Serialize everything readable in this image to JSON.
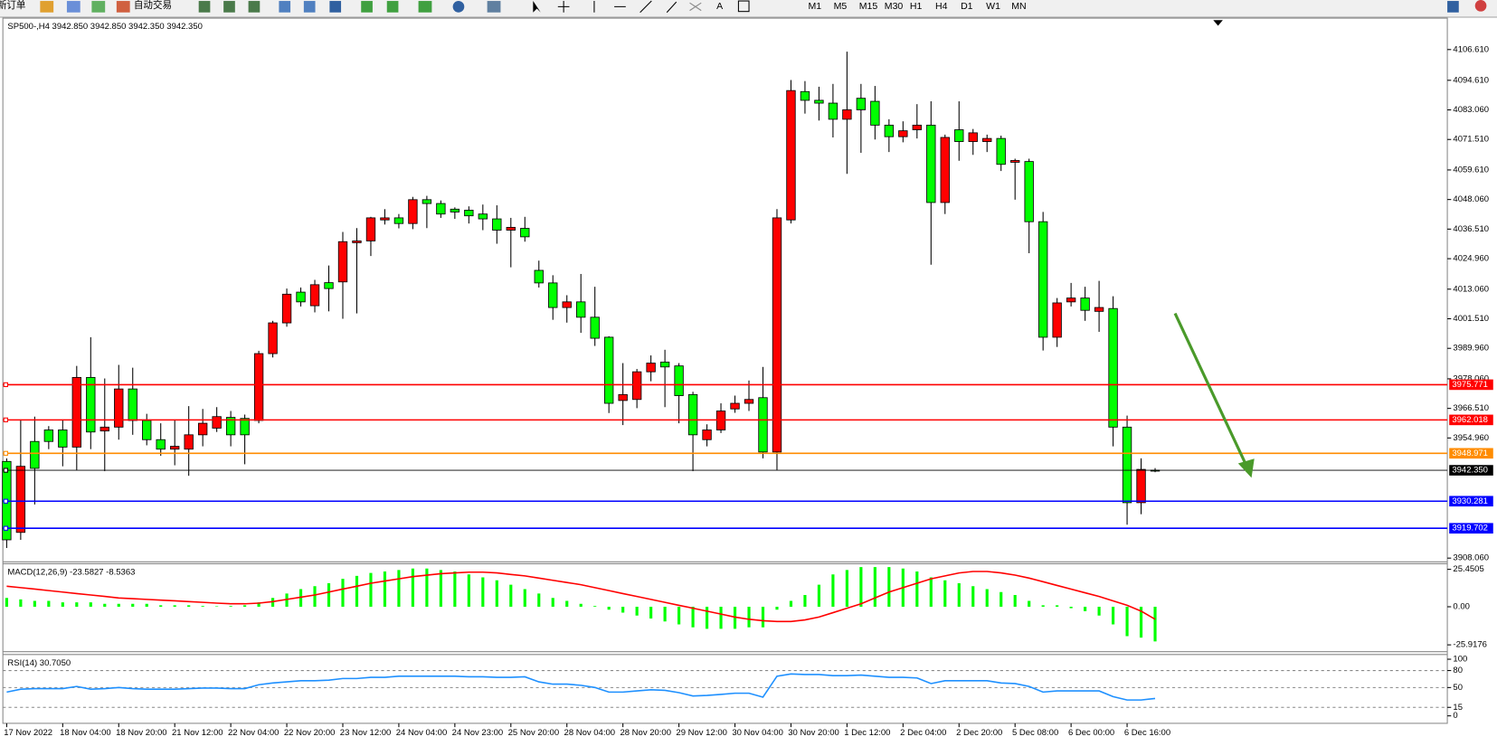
{
  "toolbar": {
    "new_order": "新订单",
    "auto_trading": "自动交易",
    "timeframes": [
      "M1",
      "M5",
      "M15",
      "M30",
      "H1",
      "H4",
      "D1",
      "W1",
      "MN"
    ]
  },
  "chart_data": [
    {
      "type": "candlestick",
      "title": "SP500-,H4  3942.850 3942.850 3942.350 3942.350",
      "categories": [
        "17 Nov 2022",
        null,
        null,
        null,
        "18 Nov 04:00",
        null,
        null,
        null,
        "18 Nov 20:00",
        null,
        null,
        null,
        "21 Nov 12:00",
        null,
        null,
        null,
        "22 Nov 04:00",
        null,
        null,
        null,
        "22 Nov 20:00",
        null,
        null,
        null,
        "23 Nov 12:00",
        null,
        null,
        null,
        "24 Nov 04:00",
        null,
        null,
        null,
        "24 Nov 23:00",
        null,
        null,
        null,
        "25 Nov 20:00",
        null,
        null,
        null,
        "28 Nov 04:00",
        null,
        null,
        null,
        "28 Nov 20:00",
        null,
        null,
        null,
        "29 Nov 12:00",
        null,
        null,
        null,
        "30 Nov 04:00",
        null,
        null,
        null,
        "30 Nov 20:00",
        null,
        null,
        null,
        "1 Dec 12:00",
        null,
        null,
        null,
        "2 Dec 04:00",
        null,
        null,
        null,
        "2 Dec 20:00",
        null,
        null,
        null,
        "5 Dec 08:00",
        null,
        null,
        null,
        "6 Dec 00:00",
        null,
        null,
        null,
        "6 Dec 16:00",
        null,
        null
      ],
      "open": [
        3945.8,
        3918.1,
        3953.6,
        3958.1,
        3958.1,
        3951.4,
        3978.6,
        3957.7,
        3959.2,
        3974.1,
        3961.8,
        3954.3,
        3950.6,
        3950.6,
        3956.2,
        3958.8,
        3963.0,
        3962.6,
        3961.8,
        3987.9,
        3999.9,
        4011.9,
        4006.6,
        4015.6,
        4015.9,
        4031.2,
        4031.9,
        4040.1,
        4040.9,
        4038.7,
        4048.0,
        4046.5,
        4044.3,
        4043.9,
        4042.4,
        4040.5,
        4036.1,
        4036.8,
        4020.4,
        4015.5,
        4005.9,
        4008.1,
        4002.1,
        3994.3,
        3969.6,
        3970.0,
        3980.8,
        3984.6,
        3983.1,
        3971.9,
        3954.3,
        3958.1,
        3966.3,
        3968.5,
        3970.7,
        3949.5,
        4040.1,
        4090.2,
        4086.8,
        4085.7,
        4079.4,
        4087.6,
        4086.4,
        4077.1,
        4072.6,
        4075.3,
        4077.1,
        4046.9,
        4075.3,
        4070.7,
        4070.7,
        4071.9,
        4062.6,
        4062.9,
        4039.4,
        3994.3,
        4008.1,
        4009.6,
        4004.4,
        4005.5,
        3959.2,
        3929.7,
        3942.4
      ],
      "high": [
        3947.0,
        3961.8,
        3963.3,
        3959.6,
        3961.8,
        3983.1,
        3994.3,
        3978.2,
        3983.5,
        3982.4,
        3964.4,
        3960.7,
        3961.8,
        3967.4,
        3966.3,
        3967.0,
        3965.5,
        3964.1,
        3989.0,
        4000.7,
        4013.3,
        4013.7,
        4016.7,
        4022.3,
        4035.4,
        4036.9,
        4041.3,
        4044.3,
        4042.4,
        4049.1,
        4049.5,
        4047.7,
        4045.0,
        4045.4,
        4046.1,
        4045.8,
        4040.9,
        4041.3,
        4024.2,
        4018.5,
        4010.7,
        4019.0,
        4014.0,
        3994.7,
        3984.2,
        3981.9,
        3987.2,
        3989.4,
        3984.2,
        3973.0,
        3960.3,
        3968.5,
        3971.5,
        3977.4,
        3982.7,
        4044.3,
        4094.7,
        4094.3,
        4092.1,
        4093.2,
        4105.8,
        4093.2,
        4092.4,
        4079.4,
        4078.6,
        4085.3,
        4086.4,
        4073.4,
        4086.4,
        4075.6,
        4073.4,
        4073.0,
        4064.0,
        4064.0,
        4043.2,
        4009.6,
        4015.5,
        4014.0,
        4016.3,
        4010.3,
        3963.7,
        3947.0,
        3943.2
      ],
      "low": [
        3912.0,
        3915.2,
        3929.0,
        3950.6,
        3943.9,
        3942.4,
        3950.6,
        3942.0,
        3954.3,
        3956.2,
        3952.1,
        3948.0,
        3944.3,
        3940.2,
        3951.7,
        3957.3,
        3951.7,
        3944.7,
        3960.7,
        3986.4,
        3998.4,
        4006.3,
        4004.0,
        4004.4,
        4001.5,
        4003.6,
        4026.0,
        4038.3,
        4036.8,
        4036.5,
        4036.9,
        4040.9,
        4040.5,
        4038.7,
        4036.1,
        4030.8,
        4021.6,
        4031.6,
        4013.7,
        4001.1,
        4000.0,
        3996.0,
        3990.9,
        3964.7,
        3960.0,
        3966.6,
        3977.1,
        3967.0,
        3960.7,
        3942.0,
        3951.7,
        3956.9,
        3964.8,
        3965.5,
        3947.0,
        3942.4,
        4038.7,
        4081.6,
        4078.9,
        4072.3,
        4058.1,
        4066.3,
        4071.5,
        4066.6,
        4070.4,
        4071.9,
        4022.6,
        4042.4,
        4063.2,
        4065.5,
        4066.6,
        4059.2,
        4048.0,
        4027.1,
        3989.1,
        3990.5,
        4006.3,
        4000.7,
        3996.4,
        3951.7,
        3921.1,
        3925.2,
        3941.6
      ],
      "close": [
        3915.2,
        3943.9,
        3943.1,
        3953.6,
        3951.4,
        3978.6,
        3957.3,
        3959.2,
        3974.1,
        3961.8,
        3954.3,
        3950.6,
        3951.7,
        3956.2,
        3960.7,
        3963.3,
        3956.2,
        3956.2,
        3987.9,
        3999.9,
        4011.1,
        4008.1,
        4014.8,
        4013.3,
        4031.6,
        4031.9,
        4040.9,
        4040.9,
        4038.7,
        4048.0,
        4046.5,
        4042.4,
        4043.2,
        4041.7,
        4040.5,
        4036.1,
        4037.2,
        4033.5,
        4015.5,
        4005.9,
        4008.1,
        4002.1,
        3993.9,
        3968.5,
        3971.9,
        3980.8,
        3984.2,
        3982.7,
        3971.5,
        3956.2,
        3958.1,
        3965.5,
        3968.5,
        3970.0,
        3949.5,
        4040.9,
        4090.6,
        4086.8,
        4085.7,
        4079.4,
        4083.1,
        4083.1,
        4077.1,
        4072.6,
        4074.9,
        4077.1,
        4046.9,
        4072.3,
        4070.7,
        4074.1,
        4071.9,
        4061.8,
        4063.3,
        4039.4,
        3994.3,
        4007.7,
        4009.6,
        4004.8,
        4005.9,
        3959.2,
        3929.7,
        3942.7,
        3942.35
      ],
      "up_color": "#ff0000",
      "down_color": "#00ff00",
      "ylim": [
        3906.6,
        4118.5
      ],
      "yticks": [
        {
          "value": 4106.61,
          "label": "4106.610"
        },
        {
          "value": 4094.61,
          "label": "4094.610"
        },
        {
          "value": 4083.06,
          "label": "4083.060"
        },
        {
          "value": 4071.51,
          "label": "4071.510"
        },
        {
          "value": 4059.61,
          "label": "4059.610"
        },
        {
          "value": 4048.06,
          "label": "4048.060"
        },
        {
          "value": 4036.51,
          "label": "4036.510"
        },
        {
          "value": 4024.96,
          "label": "4024.960"
        },
        {
          "value": 4013.06,
          "label": "4013.060"
        },
        {
          "value": 4001.51,
          "label": "4001.510"
        },
        {
          "value": 3989.96,
          "label": "3989.960"
        },
        {
          "value": 3978.06,
          "label": "3978.060"
        },
        {
          "value": 3966.51,
          "label": "3966.510"
        },
        {
          "value": 3954.96,
          "label": "3954.960"
        },
        {
          "value": 3908.06,
          "label": "3908.060"
        }
      ],
      "levels": [
        {
          "value": 3975.771,
          "color": "#ff0000"
        },
        {
          "value": 3962.018,
          "color": "#ff0000"
        },
        {
          "value": 3948.971,
          "color": "#ff8c00"
        },
        {
          "value": 3942.35,
          "label": "3942.350",
          "color": "#000000"
        },
        {
          "value": 3930.281,
          "color": "#0000ff"
        },
        {
          "value": 3919.702,
          "color": "#0000ff"
        }
      ]
    },
    {
      "type": "macd",
      "title": "MACD(12,26,9) -23.5827 -8.5363",
      "series": [
        {
          "type": "bar",
          "color": "#00ff00",
          "values": [
            6,
            5,
            4,
            4,
            3,
            3,
            3,
            2,
            2,
            2,
            2,
            1,
            1,
            1,
            0.5,
            0.3,
            0.5,
            1,
            3,
            6,
            9,
            12,
            14,
            16,
            19,
            21,
            23,
            24,
            25,
            26,
            26,
            25,
            24,
            22,
            20,
            18,
            15,
            12,
            9,
            6,
            4,
            2,
            0.5,
            -2,
            -4,
            -6,
            -8,
            -10,
            -12,
            -14,
            -15,
            -15,
            -15,
            -14,
            -14,
            -2,
            4,
            8,
            15,
            22,
            25,
            27,
            27,
            27,
            26,
            24,
            20,
            18,
            16,
            14,
            12,
            10,
            8,
            4,
            1,
            1,
            -1,
            -3,
            -6,
            -12,
            -20,
            -21,
            -23.5827
          ]
        },
        {
          "type": "line",
          "color": "#ff0000",
          "values": [
            14,
            13,
            12,
            11,
            10,
            9,
            8,
            7,
            6,
            5.5,
            5,
            4.5,
            4,
            3.5,
            3,
            2.5,
            2,
            2,
            2.5,
            3.5,
            5,
            6.5,
            8,
            10,
            12,
            14,
            16,
            17.5,
            19,
            20.5,
            21.5,
            22.5,
            23,
            23.5,
            23.5,
            23,
            22,
            21,
            19.5,
            18,
            16.5,
            15,
            13,
            11,
            9,
            7,
            5,
            3,
            1,
            -1,
            -3,
            -5,
            -7,
            -8.5,
            -9.5,
            -10,
            -10,
            -9,
            -7,
            -4,
            -1,
            2,
            6,
            10,
            13,
            16,
            19,
            21,
            23,
            24,
            24,
            23,
            21.5,
            19.5,
            17,
            14.5,
            12,
            9.5,
            7,
            4,
            1,
            -3,
            -8.5363
          ]
        }
      ],
      "ylim": [
        -29.9,
        28.6
      ],
      "yticks": [
        25.4505,
        {
          "value": 0,
          "label": "0.00"
        },
        -25.9176
      ]
    },
    {
      "type": "line",
      "title": "RSI(14) 30.7050",
      "series": [
        {
          "color": "#1e90ff",
          "values": [
            42,
            47,
            48,
            48,
            48,
            52,
            47,
            48,
            50,
            48,
            47,
            47,
            47,
            48,
            49,
            49,
            48,
            48,
            55,
            58,
            60,
            62,
            62,
            63,
            66,
            66,
            68,
            68,
            70,
            70,
            70,
            70,
            70,
            69,
            69,
            68,
            68,
            69,
            60,
            56,
            56,
            54,
            50,
            42,
            42,
            44,
            46,
            45,
            41,
            35,
            36,
            38,
            40,
            40,
            33,
            70,
            74,
            73,
            73,
            71,
            71,
            72,
            70,
            68,
            68,
            67,
            57,
            62,
            62,
            62,
            62,
            58,
            57,
            52,
            42,
            44,
            44,
            44,
            44,
            34,
            28,
            28,
            30.705
          ]
        }
      ],
      "ylim": [
        -11.5,
        106.6
      ],
      "yticks": [
        100,
        80,
        50,
        15,
        0
      ]
    }
  ]
}
